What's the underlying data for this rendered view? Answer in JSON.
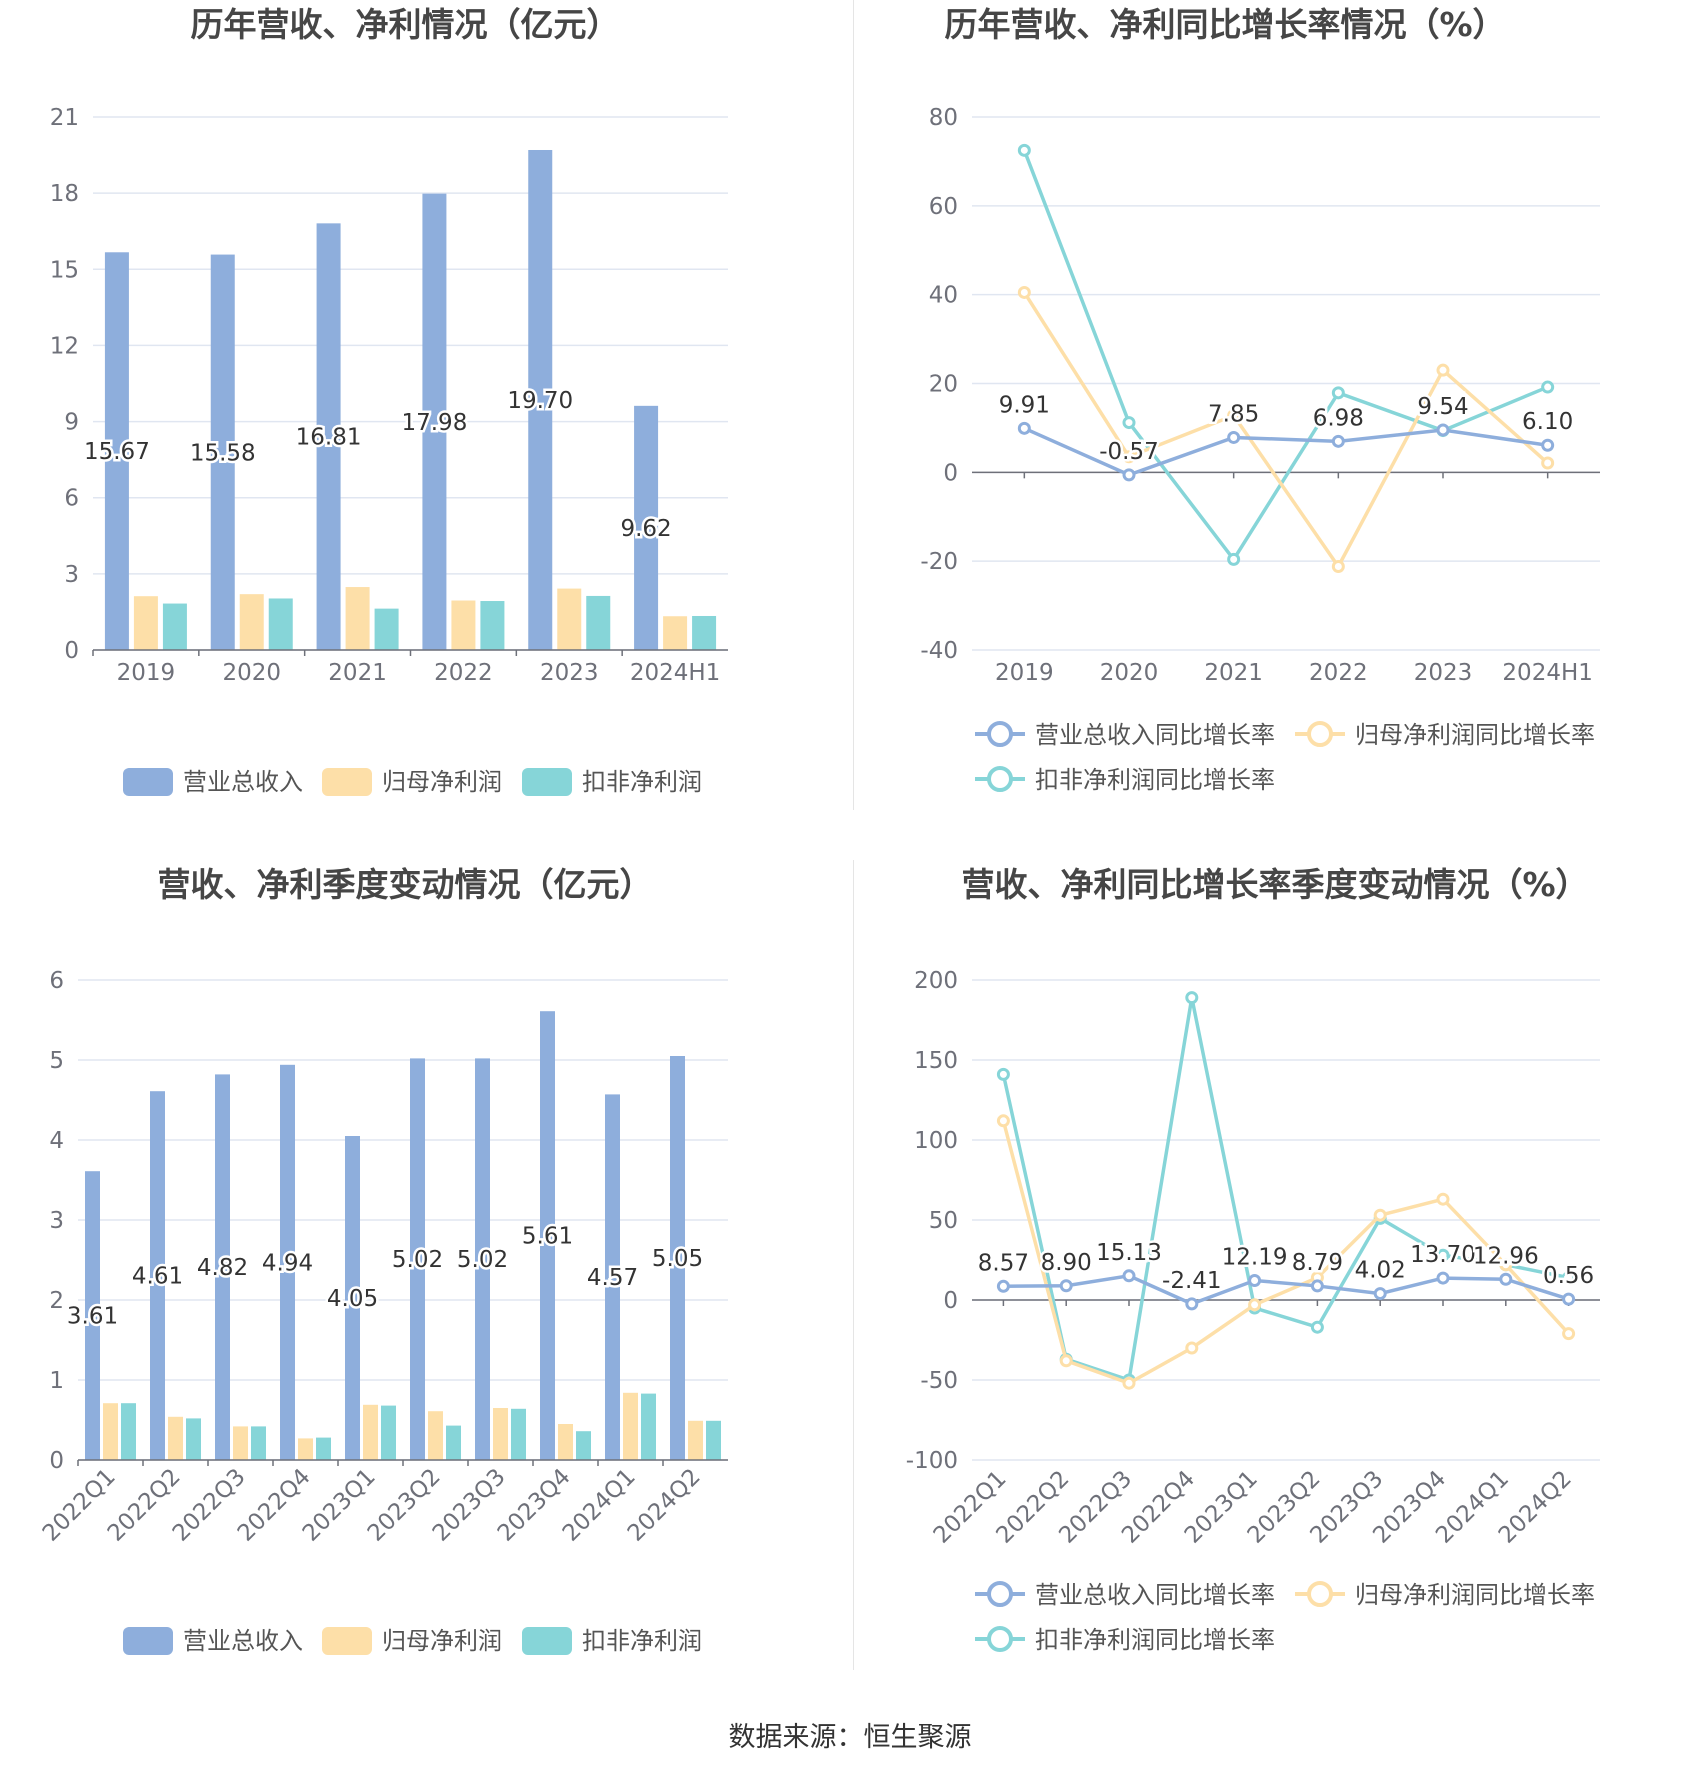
{
  "colors": {
    "revenue": "#8eaedc",
    "netprofit": "#fddfa8",
    "deducted": "#86d5d8",
    "revenue_growth": "#8eaedc",
    "netprofit_growth": "#fddfa8",
    "deducted_growth": "#86d5d8",
    "grid": "#e0e6f1",
    "axis": "#6e7079",
    "title": "#464646",
    "label": "#333333"
  },
  "footer": {
    "source": "数据来源：恒生聚源"
  },
  "chart_data": [
    {
      "id": "annual_amounts",
      "type": "bar",
      "title": "历年营收、净利情况（亿元）",
      "categories": [
        "2019",
        "2020",
        "2021",
        "2022",
        "2023",
        "2024H1"
      ],
      "ylim": [
        0,
        21
      ],
      "yticks": [
        0,
        3,
        6,
        9,
        12,
        15,
        18,
        21
      ],
      "grid": true,
      "legend_position": "bottom",
      "series": [
        {
          "name": "营业总收入",
          "values": [
            15.67,
            15.58,
            16.81,
            17.98,
            19.7,
            9.62
          ],
          "labels": [
            "15.67",
            "15.58",
            "16.81",
            "17.98",
            "19.70",
            "9.62"
          ]
        },
        {
          "name": "归母净利润",
          "values": [
            2.12,
            2.2,
            2.48,
            1.95,
            2.42,
            1.33
          ]
        },
        {
          "name": "扣非净利润",
          "values": [
            1.83,
            2.03,
            1.63,
            1.93,
            2.13,
            1.34
          ]
        }
      ]
    },
    {
      "id": "annual_growth",
      "type": "line",
      "title": "历年营收、净利同比增长率情况（%）",
      "categories": [
        "2019",
        "2020",
        "2021",
        "2022",
        "2023",
        "2024H1"
      ],
      "ylim": [
        -40,
        80
      ],
      "yticks": [
        -40,
        -20,
        0,
        20,
        40,
        60,
        80
      ],
      "grid": true,
      "legend_position": "bottom",
      "series": [
        {
          "name": "营业总收入同比增长率",
          "values": [
            9.91,
            -0.57,
            7.85,
            6.98,
            9.54,
            6.1
          ],
          "labels": [
            "9.91",
            "-0.57",
            "7.85",
            "6.98",
            "9.54",
            "6.10"
          ]
        },
        {
          "name": "归母净利润同比增长率",
          "values": [
            40.5,
            3.5,
            12.8,
            -21.2,
            23.0,
            2.1
          ]
        },
        {
          "name": "扣非净利润同比增长率",
          "values": [
            72.5,
            11.2,
            -19.6,
            17.9,
            9.4,
            19.2
          ]
        }
      ]
    },
    {
      "id": "quarterly_amounts",
      "type": "bar",
      "title": "营收、净利季度变动情况（亿元）",
      "categories": [
        "2022Q1",
        "2022Q2",
        "2022Q3",
        "2022Q4",
        "2023Q1",
        "2023Q2",
        "2023Q3",
        "2023Q4",
        "2024Q1",
        "2024Q2"
      ],
      "ylim": [
        0,
        6
      ],
      "yticks": [
        0,
        1,
        2,
        3,
        4,
        5,
        6
      ],
      "grid": true,
      "legend_position": "bottom",
      "series": [
        {
          "name": "营业总收入",
          "values": [
            3.61,
            4.61,
            4.82,
            4.94,
            4.05,
            5.02,
            5.02,
            5.61,
            4.57,
            5.05
          ],
          "labels": [
            "3.61",
            "4.61",
            "4.82",
            "4.94",
            "4.05",
            "5.02",
            "5.02",
            "5.61",
            "4.57",
            "5.05"
          ]
        },
        {
          "name": "归母净利润",
          "values": [
            0.71,
            0.54,
            0.42,
            0.27,
            0.69,
            0.61,
            0.65,
            0.45,
            0.84,
            0.49
          ]
        },
        {
          "name": "扣非净利润",
          "values": [
            0.71,
            0.52,
            0.42,
            0.28,
            0.68,
            0.43,
            0.64,
            0.36,
            0.83,
            0.49
          ]
        }
      ]
    },
    {
      "id": "quarterly_growth",
      "type": "line",
      "title": "营收、净利同比增长率季度变动情况（%）",
      "categories": [
        "2022Q1",
        "2022Q2",
        "2022Q3",
        "2022Q4",
        "2023Q1",
        "2023Q2",
        "2023Q3",
        "2023Q4",
        "2024Q1",
        "2024Q2"
      ],
      "ylim": [
        -100,
        200
      ],
      "yticks": [
        -100,
        -50,
        0,
        50,
        100,
        150,
        200
      ],
      "grid": true,
      "legend_position": "bottom",
      "series": [
        {
          "name": "营业总收入同比增长率",
          "values": [
            8.57,
            8.9,
            15.13,
            -2.41,
            12.19,
            8.79,
            4.02,
            13.7,
            12.96,
            0.56
          ],
          "labels": [
            "8.57",
            "8.90",
            "15.13",
            "-2.41",
            "12.19",
            "8.79",
            "4.02",
            "13.70",
            "12.96",
            "0.56"
          ]
        },
        {
          "name": "归母净利润同比增长率",
          "values": [
            112,
            -38,
            -52,
            -30,
            -3,
            14,
            53,
            63,
            22,
            -21
          ]
        },
        {
          "name": "扣非净利润同比增长率",
          "values": [
            141,
            -37,
            -50,
            189,
            -5,
            -17,
            51,
            28,
            22,
            14
          ]
        }
      ]
    }
  ]
}
